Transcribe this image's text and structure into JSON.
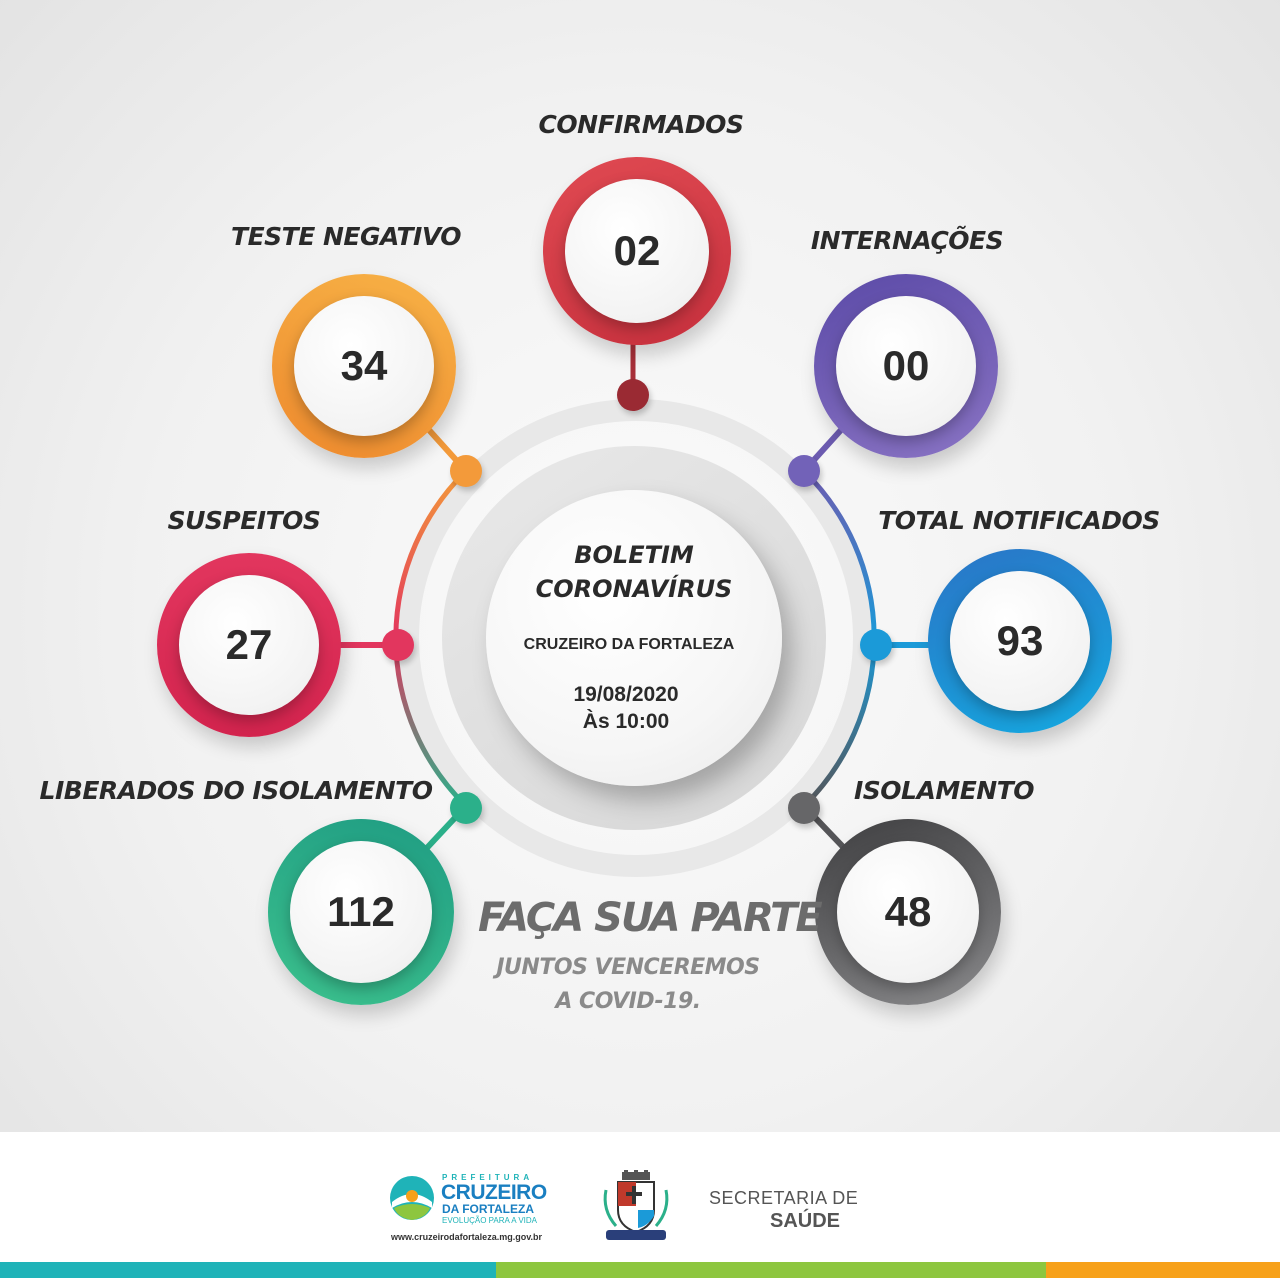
{
  "stats": {
    "confirmados": {
      "label": "CONFIRMADOS",
      "value": "02"
    },
    "teste_negativo": {
      "label": "TESTE NEGATIVO",
      "value": "34"
    },
    "internacoes": {
      "label": "INTERNAÇÕES",
      "value": "00"
    },
    "suspeitos": {
      "label": "SUSPEITOS",
      "value": "27"
    },
    "total_notificados": {
      "label": "TOTAL NOTIFICADOS",
      "value": "93"
    },
    "liberados": {
      "label": "LIBERADOS DO ISOLAMENTO",
      "value": "112"
    },
    "isolamento": {
      "label": "ISOLAMENTO",
      "value": "48"
    }
  },
  "center": {
    "title_line1": "BOLETIM",
    "title_line2": "CORONAVÍRUS",
    "city": "CRUZEIRO DA FORTALEZA",
    "date": "19/08/2020",
    "time": "Às 10:00"
  },
  "slogan": {
    "main": "FAÇA SUA PARTE",
    "line1": "JUNTOS VENCEREMOS",
    "line2": "A COVID-19."
  },
  "footer": {
    "prefeitura": "PREFEITURA",
    "brand1": "CRUZEIRO",
    "brand2": "DA FORTALEZA",
    "tagline": "EVOLUÇÃO PARA A VIDA",
    "url": "www.cruzeirodafortaleza.mg.gov.br",
    "secretaria": "SECRETARIA DE",
    "saude": "SAÚDE"
  },
  "colors": {
    "confirmados": "#d8404a",
    "teste_negativo": "#f39a3a",
    "internacoes": "#6c5bb0",
    "suspeitos": "#e2365e",
    "total_notificados": "#1b9ad8",
    "liberados": "#2bb08a",
    "isolamento": "#555558",
    "bar_teal": "#1fb3b8",
    "bar_green": "#8dc63f",
    "bar_orange": "#f7a11a"
  }
}
